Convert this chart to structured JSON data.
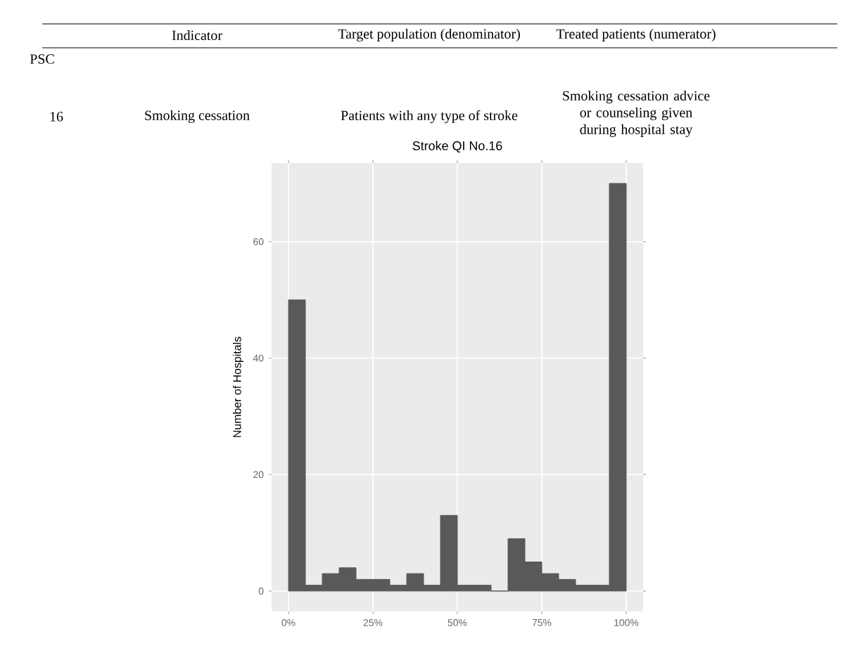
{
  "chart_data": {
    "type": "histogram",
    "title": "Stroke QI No.16",
    "ylabel": "Number of Hospitals",
    "annotations": [
      "Indicator",
      "Target population (denominator)",
      "Treated patients (numerator)",
      "PSC",
      "16",
      "Smoking cessation",
      "Patients with any type of stroke",
      "Smoking cessation advice or counseling given during hospital stay"
    ],
    "bins": [
      0,
      5,
      10,
      15,
      20,
      25,
      30,
      35,
      40,
      45,
      50,
      55,
      60,
      65,
      70,
      75,
      80,
      85,
      90,
      95,
      100
    ],
    "values": [
      50,
      1,
      3,
      4,
      2,
      2,
      1,
      3,
      1,
      13,
      1,
      1,
      0,
      9,
      5,
      3,
      2,
      1,
      1,
      70
    ],
    "color": "#595959",
    "xlim": [
      -5,
      105
    ],
    "ylim": [
      -3.5,
      73.5
    ],
    "xticks": [
      {
        "value": 0,
        "label": "0%"
      },
      {
        "value": 25,
        "label": "25%"
      },
      {
        "value": 50,
        "label": "50%"
      },
      {
        "value": 75,
        "label": "75%"
      },
      {
        "value": 100,
        "label": "100%"
      }
    ],
    "yticks": [
      0,
      20,
      40,
      60
    ],
    "grid": true
  }
}
